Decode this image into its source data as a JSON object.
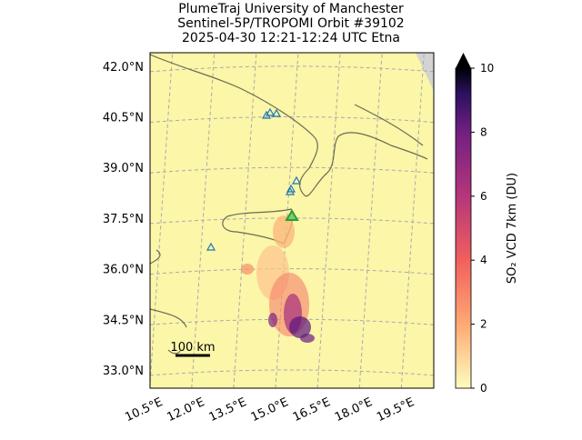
{
  "map": {
    "title_lines": [
      "PlumeTraj    University of Manchester",
      "Sentinel-5P/TROPOMI Orbit #39102",
      "2025-04-30    12:21-12:24 UTC    Etna"
    ],
    "latlim": [
      32.46,
      42.4
    ],
    "lonlim": [
      11.0,
      21.15
    ],
    "lat_ticks": [
      {
        "value": 42.0,
        "label": "42.0°N"
      },
      {
        "value": 40.5,
        "label": "40.5°N"
      },
      {
        "value": 39.0,
        "label": "39.0°N"
      },
      {
        "value": 37.5,
        "label": "37.5°N"
      },
      {
        "value": 36.0,
        "label": "36.0°N"
      },
      {
        "value": 34.5,
        "label": "34.5°N"
      },
      {
        "value": 33.0,
        "label": "33.0°N"
      }
    ],
    "lon_ticks": [
      {
        "value": 10.5,
        "label": "10.5°E"
      },
      {
        "value": 12.0,
        "label": "12.0°E"
      },
      {
        "value": 13.5,
        "label": "13.5°E"
      },
      {
        "value": 15.0,
        "label": "15.0°E"
      },
      {
        "value": 16.5,
        "label": "16.5°E"
      },
      {
        "value": 18.0,
        "label": "18.0°E"
      },
      {
        "value": 19.5,
        "label": "19.5°E"
      }
    ],
    "scale_label": "100 km",
    "colorbar": {
      "label": "SO₂ VCD 7km (DU)",
      "lim": [
        0,
        10
      ],
      "ticks": [
        0,
        2,
        4,
        6,
        8,
        10
      ]
    }
  }
}
